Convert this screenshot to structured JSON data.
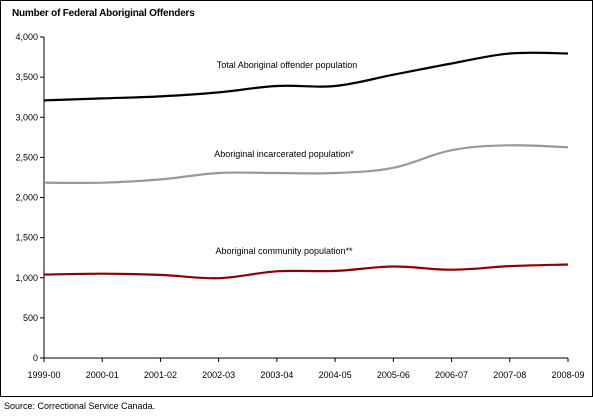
{
  "chart_data": {
    "type": "line",
    "title": "Number of Federal Aboriginal Offenders",
    "xlabel": "",
    "ylabel": "",
    "categories": [
      "1999-00",
      "2000-01",
      "2001-02",
      "2002-03",
      "2003-04",
      "2004-05",
      "2005-06",
      "2006-07",
      "2007-08",
      "2008-09"
    ],
    "ylim": [
      0,
      4000
    ],
    "yticks": [
      "0",
      "500",
      "1,000",
      "1,500",
      "2,000",
      "2,500",
      "3,000",
      "3,500",
      "4,000"
    ],
    "ytick_values": [
      0,
      500,
      1000,
      1500,
      2000,
      2500,
      3000,
      3500,
      4000
    ],
    "grid": false,
    "legend": "inline-labels",
    "series": [
      {
        "name": "Total Aboriginal offender population",
        "color": "#000000",
        "values": [
          3210,
          3235,
          3260,
          3310,
          3390,
          3390,
          3530,
          3670,
          3795,
          3795
        ]
      },
      {
        "name": "Aboriginal incarcerated population*",
        "color": "#999999",
        "values": [
          2185,
          2185,
          2225,
          2305,
          2305,
          2305,
          2370,
          2590,
          2650,
          2625
        ]
      },
      {
        "name": "Aboriginal community population**",
        "color": "#8b0000",
        "values": [
          1040,
          1050,
          1035,
          995,
          1080,
          1085,
          1140,
          1100,
          1145,
          1165
        ]
      }
    ],
    "source": "Source:  Correctional Service Canada."
  }
}
